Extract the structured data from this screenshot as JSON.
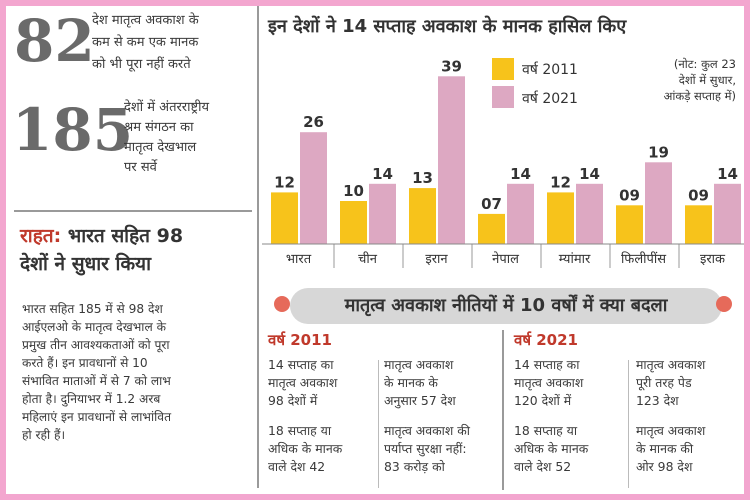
{
  "left": {
    "stat1_number": "82",
    "stat1_text": [
      "देश मातृत्व अवकाश के",
      "कम से कम एक मानक",
      "को भी पूरा नहीं करते"
    ],
    "stat2_number": "185",
    "stat2_text": [
      "देशों में अंतरराष्ट्रीय",
      "श्रम संगठन का",
      "मातृत्व देखभाल",
      "पर सर्वे"
    ],
    "relief_prefix": "राहत:",
    "relief_line1_rest": " भारत सहित 98",
    "relief_line2": "देशों ने सुधार किया",
    "body": [
      "भारत सहित 185 में से 98 देश",
      "आईएलओ के मातृत्व देखभाल के",
      "प्रमुख तीन आवश्यकताओं को पूरा",
      "करते हैं। इन प्रावधानों से 10",
      "संभावित माताओं में से 7  को लाभ",
      "होता है। दुनियाभर में 1.2 अरब",
      "महिलाएं इन प्रावधानों से लाभांवित",
      "हो रही हैं।"
    ]
  },
  "chart_data": {
    "type": "bar",
    "title": "इन देशों ने 14 सप्ताह अवकाश के मानक हासिल किए",
    "categories": [
      "भारत",
      "चीन",
      "इरान",
      "नेपाल",
      "म्यांमार",
      "फिलीपींस",
      "इराक"
    ],
    "series": [
      {
        "name": "वर्ष 2011",
        "values": [
          12,
          10,
          13,
          7,
          12,
          9,
          9
        ],
        "labels": [
          "12",
          "10",
          "13",
          "07",
          "12",
          "09",
          "09"
        ]
      },
      {
        "name": "वर्ष 2021",
        "values": [
          26,
          14,
          39,
          14,
          14,
          19,
          14
        ],
        "labels": [
          "26",
          "14",
          "39",
          "14",
          "14",
          "19",
          "14"
        ]
      }
    ],
    "note": [
      "(नोट: कुल 23",
      "देशों में सुधार,",
      "आंकड़े सप्ताह में)"
    ],
    "legend_position": "top",
    "colors": {
      "2011": "#f7c31b",
      "2021": "#dda8c2"
    }
  },
  "policy": {
    "title": "मातृत्व अवकाश नीतियों में 10 वर्षों में क्या बदला",
    "col2011": {
      "year_label": "वर्ष 2011",
      "left": [
        "14 सप्ताह का",
        "मातृत्व अवकाश",
        "98 देशों में",
        "18 सप्ताह या",
        "अधिक के मानक",
        "वाले देश 42"
      ],
      "right": [
        "मातृत्व अवकाश",
        "के मानक के",
        "अनुसार 57 देश",
        "मातृत्व अवकाश की",
        "पर्याप्त सुरक्षा नहीं:",
        "83 करोड़ को"
      ]
    },
    "col2021": {
      "year_label": "वर्ष 2021",
      "left": [
        "14 सप्ताह का",
        "मातृत्व अवकाश",
        "120 देशों में",
        "18 सप्ताह या",
        "अधिक के मानक",
        "वाले देश 52"
      ],
      "right": [
        "मातृत्व अवकाश",
        "पूरी तरह पेड",
        "123 देश",
        "मातृत्व अवकाश",
        "के मानक की",
        "ओर 98 देश"
      ]
    }
  }
}
